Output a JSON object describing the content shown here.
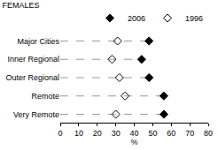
{
  "chart_data": {
    "type": "dot",
    "title": "FEMALES",
    "orientation": "horizontal",
    "categories": [
      "Major Cities",
      "Inner Regional",
      "Outer Regional",
      "Remote",
      "Very Remote"
    ],
    "series": [
      {
        "name": "2006",
        "color": "#000000",
        "marker": "diamond",
        "values": [
          48,
          44,
          48,
          56,
          56
        ]
      },
      {
        "name": "1996",
        "color": "#000000",
        "marker": "diamond-open",
        "values": [
          31,
          28,
          32,
          35,
          30
        ]
      }
    ],
    "xlabel": "%",
    "xlim": [
      0,
      80
    ],
    "xticks": [
      0,
      10,
      20,
      30,
      40,
      50,
      60,
      70,
      80
    ],
    "grid": false,
    "legend": "top right",
    "line_style": "dashed"
  }
}
